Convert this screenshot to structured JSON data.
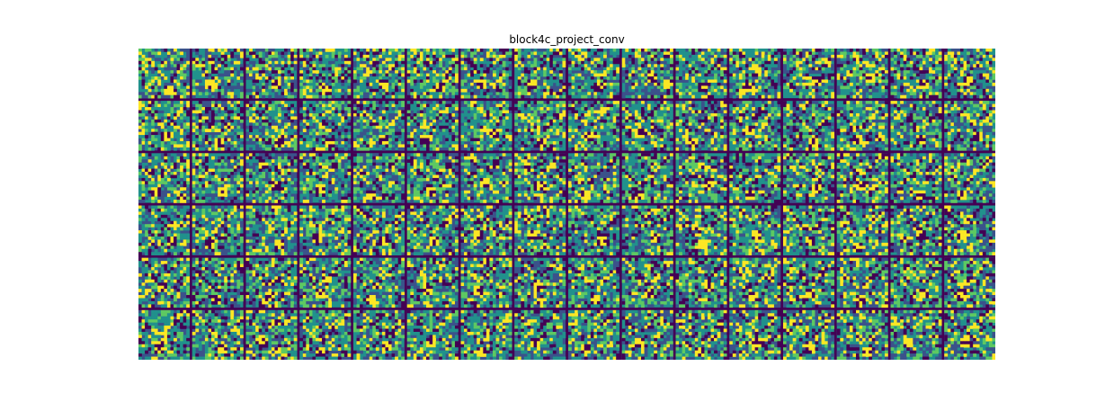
{
  "figure": {
    "title": "block4c_project_conv"
  },
  "grid": {
    "rows": 6,
    "cols": 16,
    "tile_pixels": 16,
    "colormap": "viridis",
    "separator_color": "#440154",
    "palette": [
      "#440154",
      "#3b528b",
      "#21918c",
      "#5ec962",
      "#fde725"
    ]
  }
}
